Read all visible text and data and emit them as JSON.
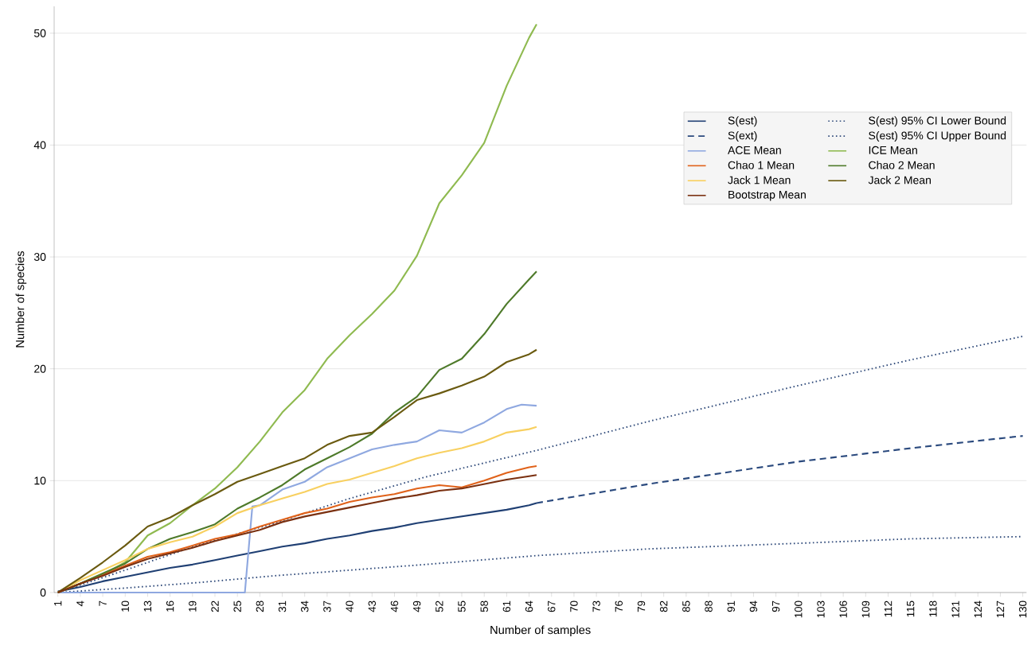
{
  "chart_data": {
    "type": "line",
    "xlabel": "Number of samples",
    "ylabel": "Number of species",
    "xlim": [
      0.5,
      130.5
    ],
    "ylim": [
      0,
      52.4
    ],
    "xticks": [
      1,
      4,
      7,
      10,
      13,
      16,
      19,
      22,
      25,
      28,
      31,
      34,
      37,
      40,
      43,
      46,
      49,
      52,
      55,
      58,
      61,
      64,
      67,
      70,
      73,
      76,
      79,
      82,
      85,
      88,
      91,
      94,
      97,
      100,
      103,
      106,
      109,
      112,
      115,
      118,
      121,
      124,
      127,
      130
    ],
    "yticks": [
      0,
      10,
      20,
      30,
      40,
      50
    ],
    "grid": "y",
    "legend": "top right",
    "series": [
      {
        "name": "S(est)",
        "color": "#1f3f73",
        "line_style": "solid",
        "x": [
          1,
          4,
          7,
          10,
          13,
          16,
          19,
          22,
          25,
          28,
          31,
          34,
          37,
          40,
          43,
          46,
          49,
          52,
          55,
          58,
          61,
          64,
          65
        ],
        "values": [
          0.1,
          0.5,
          1.0,
          1.4,
          1.8,
          2.2,
          2.5,
          2.9,
          3.3,
          3.7,
          4.1,
          4.4,
          4.8,
          5.1,
          5.5,
          5.8,
          6.2,
          6.5,
          6.8,
          7.1,
          7.4,
          7.8,
          8.0
        ]
      },
      {
        "name": "S(est) 95% CI Lower Bound",
        "color": "#2f4a7a",
        "line_style": "dotted",
        "x": [
          1,
          10,
          20,
          30,
          40,
          50,
          65,
          80,
          100,
          115,
          130
        ],
        "values": [
          0,
          0.4,
          0.9,
          1.5,
          2.0,
          2.5,
          3.3,
          3.9,
          4.4,
          4.8,
          5.0
        ]
      },
      {
        "name": "S(ext)",
        "color": "#2b4a7e",
        "line_style": "dashed",
        "x": [
          65,
          80,
          100,
          115,
          130
        ],
        "values": [
          8.0,
          9.7,
          11.7,
          12.9,
          14.0
        ]
      },
      {
        "name": "S(est) 95% CI Upper Bound",
        "color": "#2f4a7a",
        "line_style": "dotted",
        "x": [
          1,
          10,
          20,
          30,
          40,
          50,
          65,
          80,
          100,
          115,
          130
        ],
        "values": [
          0,
          2.0,
          4.3,
          6.2,
          8.4,
          10.3,
          12.7,
          15.3,
          18.5,
          20.8,
          22.9
        ]
      },
      {
        "name": "ACE Mean",
        "color": "#8fa8e0",
        "line_style": "solid",
        "x": [
          1,
          26,
          27,
          28,
          31,
          34,
          37,
          40,
          43,
          46,
          49,
          52,
          55,
          58,
          61,
          63,
          65
        ],
        "values": [
          0,
          0,
          7.7,
          7.8,
          9.2,
          9.9,
          11.2,
          12.0,
          12.8,
          13.2,
          13.5,
          14.5,
          14.3,
          15.2,
          16.4,
          16.8,
          16.7
        ]
      },
      {
        "name": "ICE Mean",
        "color": "#8fba50",
        "line_style": "solid",
        "x": [
          1,
          4,
          7,
          10,
          13,
          16,
          19,
          22,
          25,
          28,
          31,
          34,
          37,
          40,
          43,
          46,
          49,
          52,
          55,
          58,
          61,
          64,
          65
        ],
        "values": [
          0,
          0.8,
          1.6,
          2.7,
          5.1,
          6.2,
          7.8,
          9.3,
          11.2,
          13.5,
          16.1,
          18.1,
          20.9,
          23.0,
          24.9,
          27.0,
          30.1,
          34.8,
          37.3,
          40.2,
          45.3,
          49.6,
          50.8
        ]
      },
      {
        "name": "Chao 1 Mean",
        "color": "#e0621a",
        "line_style": "solid",
        "x": [
          1,
          4,
          7,
          10,
          13,
          16,
          19,
          22,
          25,
          28,
          31,
          34,
          37,
          40,
          43,
          46,
          49,
          52,
          55,
          58,
          61,
          64,
          65
        ],
        "values": [
          0,
          0.8,
          1.6,
          2.4,
          3.2,
          3.6,
          4.2,
          4.8,
          5.2,
          5.9,
          6.5,
          7.1,
          7.5,
          8.1,
          8.5,
          8.8,
          9.3,
          9.6,
          9.4,
          10.0,
          10.7,
          11.2,
          11.3
        ]
      },
      {
        "name": "Chao 2 Mean",
        "color": "#4e7a2a",
        "line_style": "solid",
        "x": [
          1,
          4,
          7,
          10,
          13,
          16,
          19,
          22,
          25,
          28,
          31,
          34,
          37,
          40,
          43,
          46,
          49,
          52,
          55,
          58,
          61,
          64,
          65
        ],
        "values": [
          0,
          0.8,
          1.7,
          2.6,
          3.9,
          4.8,
          5.4,
          6.1,
          7.5,
          8.5,
          9.6,
          11.0,
          12.0,
          13.0,
          14.2,
          16.1,
          17.5,
          19.9,
          20.9,
          23.1,
          25.8,
          28.0,
          28.7
        ]
      },
      {
        "name": "Jack 1 Mean",
        "color": "#f8d060",
        "line_style": "solid",
        "x": [
          1,
          4,
          7,
          10,
          13,
          16,
          19,
          22,
          25,
          28,
          31,
          34,
          37,
          40,
          43,
          46,
          49,
          52,
          55,
          58,
          61,
          64,
          65
        ],
        "values": [
          0,
          1.1,
          2.0,
          2.9,
          3.9,
          4.5,
          5.0,
          5.9,
          7.1,
          7.8,
          8.4,
          9.0,
          9.7,
          10.1,
          10.7,
          11.3,
          12.0,
          12.5,
          12.9,
          13.5,
          14.3,
          14.6,
          14.8
        ]
      },
      {
        "name": "Jack 2 Mean",
        "color": "#6a5a10",
        "line_style": "solid",
        "x": [
          1,
          4,
          7,
          10,
          13,
          16,
          19,
          22,
          25,
          28,
          31,
          34,
          37,
          40,
          43,
          46,
          49,
          52,
          55,
          58,
          61,
          64,
          65
        ],
        "values": [
          0,
          1.3,
          2.7,
          4.2,
          5.9,
          6.7,
          7.8,
          8.8,
          9.9,
          10.6,
          11.3,
          12.0,
          13.2,
          14.0,
          14.3,
          15.7,
          17.2,
          17.8,
          18.5,
          19.3,
          20.6,
          21.3,
          21.7
        ]
      },
      {
        "name": "Bootstrap Mean",
        "color": "#7a3010",
        "line_style": "solid",
        "x": [
          1,
          4,
          7,
          10,
          13,
          16,
          19,
          22,
          25,
          28,
          31,
          34,
          37,
          40,
          43,
          46,
          49,
          52,
          55,
          58,
          61,
          64,
          65
        ],
        "values": [
          0,
          0.8,
          1.5,
          2.3,
          3.0,
          3.5,
          4.0,
          4.6,
          5.1,
          5.6,
          6.3,
          6.8,
          7.2,
          7.6,
          8.0,
          8.4,
          8.7,
          9.1,
          9.3,
          9.7,
          10.1,
          10.4,
          10.5
        ]
      }
    ]
  }
}
